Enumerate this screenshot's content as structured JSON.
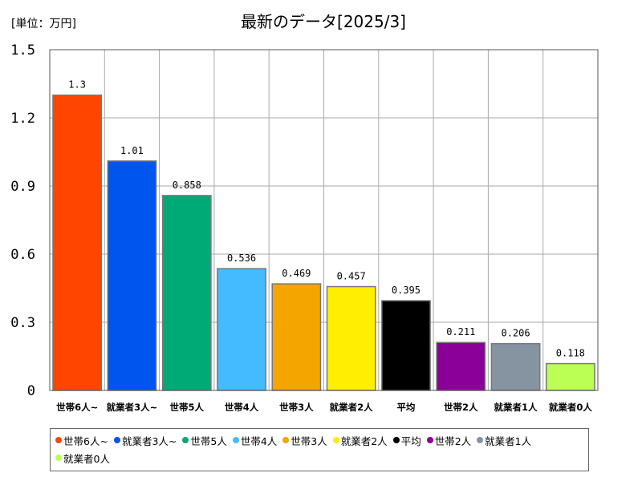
{
  "chart_data": {
    "type": "bar",
    "title": "最新のデータ[2025/3]",
    "unit_label": "[単位：万円]",
    "categories": [
      "世帯6人~",
      "就業者3人~",
      "世帯5人",
      "世帯4人",
      "世帯3人",
      "就業者2人",
      "平均",
      "世帯2人",
      "就業者1人",
      "就業者0人"
    ],
    "values": [
      1.3,
      1.01,
      0.858,
      0.536,
      0.469,
      0.457,
      0.395,
      0.211,
      0.206,
      0.118
    ],
    "value_labels": [
      "1.3",
      "1.01",
      "0.858",
      "0.536",
      "0.469",
      "0.457",
      "0.395",
      "0.211",
      "0.206",
      "0.118"
    ],
    "colors": [
      "#ff4500",
      "#0055ee",
      "#00aa77",
      "#44bbff",
      "#f5a500",
      "#ffee00",
      "#000000",
      "#8b0099",
      "#8594a0",
      "#bbff55"
    ],
    "ylim": [
      0,
      1.5
    ],
    "yticks": [
      "0",
      "0.3",
      "0.6",
      "0.9",
      "1.2",
      "1.5"
    ],
    "grid": true,
    "legend": {
      "placement": "bottom",
      "entries": [
        "世帯6人~",
        "就業者3人~",
        "世帯5人",
        "世帯4人",
        "世帯3人",
        "就業者2人",
        "平均",
        "世帯2人",
        "就業者1人",
        "就業者0人"
      ]
    }
  }
}
